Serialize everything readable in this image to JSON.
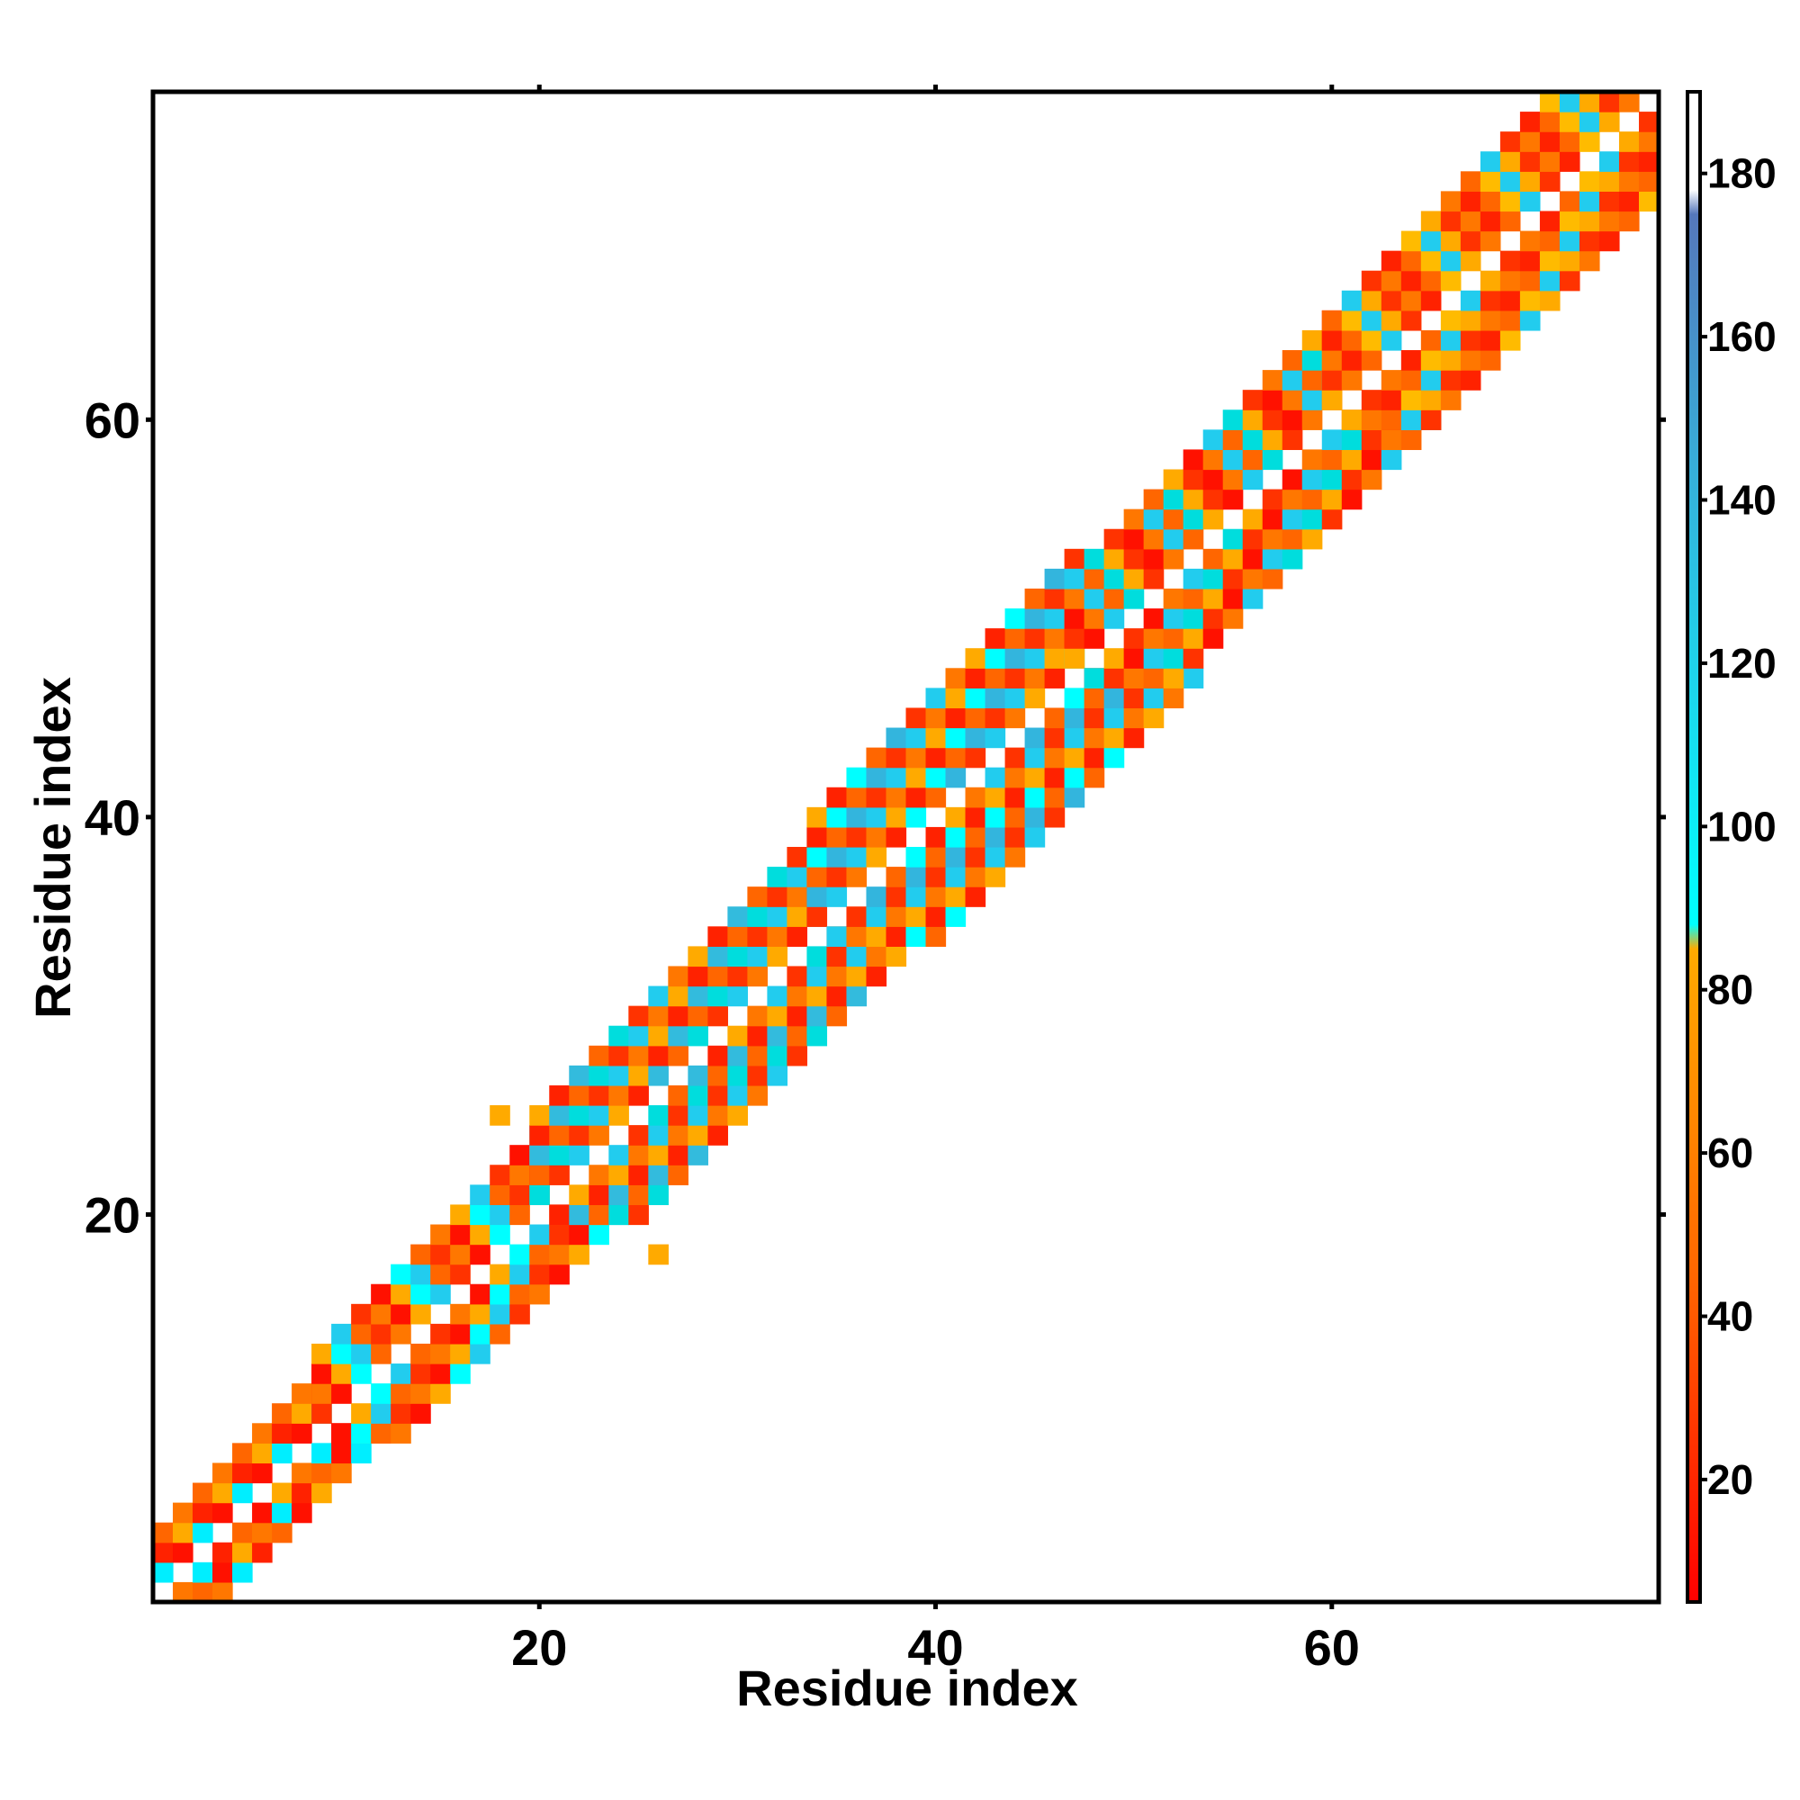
{
  "chart_data": {
    "type": "heatmap",
    "title": "",
    "xlabel": "Residue index",
    "ylabel": "Residue index",
    "xlim": [
      1,
      76
    ],
    "ylim": [
      1,
      76
    ],
    "x_ticks": [
      20,
      40,
      60
    ],
    "y_ticks": [
      20,
      40,
      60
    ],
    "colorbar": {
      "range": [
        5,
        190
      ],
      "ticks": [
        20,
        40,
        60,
        80,
        100,
        120,
        140,
        160,
        180
      ],
      "stops": [
        {
          "value": 5,
          "color": "#ff0000"
        },
        {
          "value": 45,
          "color": "#ff6600"
        },
        {
          "value": 85,
          "color": "#ffaa00"
        },
        {
          "value": 88,
          "color": "#00ffff"
        },
        {
          "value": 140,
          "color": "#33b5dd"
        },
        {
          "value": 175,
          "color": "#5577bb"
        },
        {
          "value": 178,
          "color": "#ffffff"
        },
        {
          "value": 190,
          "color": "#ffffff"
        }
      ]
    },
    "diagonal_bands": [
      {
        "from": 1,
        "to": 9,
        "offset_max": 3,
        "colors": [
          "#ff6600",
          "#ff2200",
          "#00eeff",
          "#ff7700",
          "#ffaa00",
          "#ff1100"
        ]
      },
      {
        "from": 9,
        "to": 20,
        "offset_max": 4,
        "colors": [
          "#ff6600",
          "#ff1100",
          "#22ccee",
          "#ff7700",
          "#00ffff",
          "#ff3300",
          "#ffaa00"
        ]
      },
      {
        "from": 20,
        "to": 34,
        "offset_max": 5,
        "colors": [
          "#ff6600",
          "#22ccee",
          "#ff2200",
          "#00dddd",
          "#ff7700",
          "#33bbdd",
          "#ff3300",
          "#ffaa00"
        ]
      },
      {
        "from": 34,
        "to": 47,
        "offset_max": 6,
        "colors": [
          "#ff6600",
          "#22ccee",
          "#ff2200",
          "#33b5dd",
          "#ff7700",
          "#00ffff",
          "#ff3300",
          "#ffaa00"
        ]
      },
      {
        "from": 47,
        "to": 60,
        "offset_max": 5,
        "colors": [
          "#ff6600",
          "#ff3300",
          "#22ccee",
          "#ffaa00",
          "#ff7700",
          "#00dddd",
          "#ff1100"
        ]
      },
      {
        "from": 60,
        "to": 76,
        "offset_max": 5,
        "colors": [
          "#ff6600",
          "#ffaa00",
          "#ff2200",
          "#22ccee",
          "#ff7700",
          "#ffbb00",
          "#ff3300"
        ]
      }
    ],
    "outliers": [
      {
        "x": 18,
        "y": 25,
        "color": "#ffaa00"
      },
      {
        "x": 26,
        "y": 18,
        "color": "#ffaa00"
      }
    ]
  }
}
